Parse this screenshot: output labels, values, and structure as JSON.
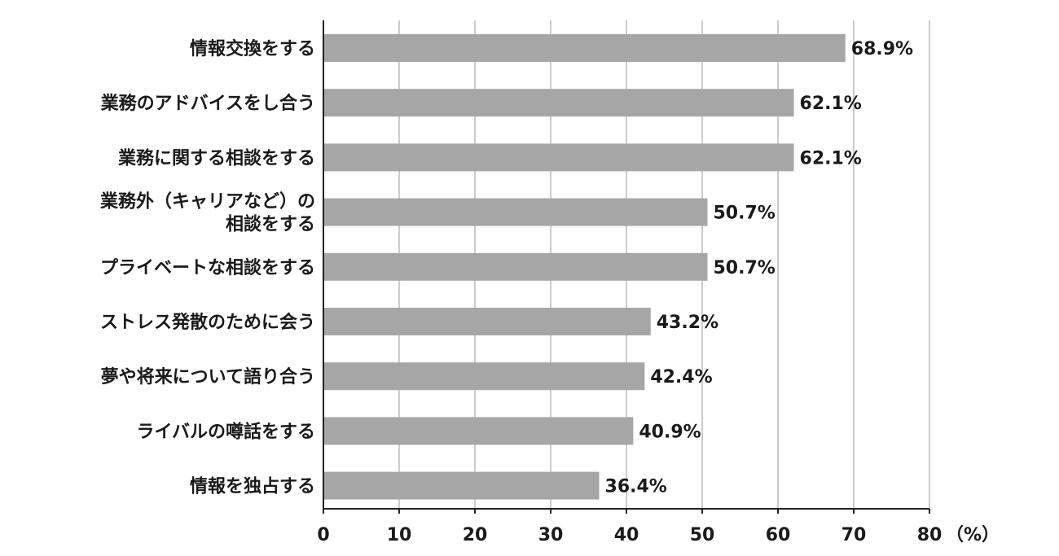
{
  "chart_data": {
    "type": "bar",
    "orientation": "horizontal",
    "categories": [
      [
        "情報交換をする"
      ],
      [
        "業務のアドバイスをし合う"
      ],
      [
        "業務に関する相談をする"
      ],
      [
        "業務外（キャリアなど）の",
        "相談をする"
      ],
      [
        "プライベートな相談をする"
      ],
      [
        "ストレス発散のために会う"
      ],
      [
        "夢や将来について語り合う"
      ],
      [
        "ライバルの噂話をする"
      ],
      [
        "情報を独占する"
      ]
    ],
    "values": [
      68.9,
      62.1,
      62.1,
      50.7,
      50.7,
      43.2,
      42.4,
      40.9,
      36.4
    ],
    "value_labels": [
      "68.9%",
      "62.1%",
      "62.1%",
      "50.7%",
      "50.7%",
      "43.2%",
      "42.4%",
      "40.9%",
      "36.4%"
    ],
    "xlim": [
      0,
      80
    ],
    "xticks": [
      0,
      10,
      20,
      30,
      40,
      50,
      60,
      70,
      80
    ],
    "xtick_labels": [
      "0",
      "10",
      "20",
      "30",
      "40",
      "50",
      "60",
      "70",
      "80"
    ],
    "unit_label": "（%）",
    "grid": true,
    "bar_color": "#a6a6a6",
    "grid_color": "#9a9a9a",
    "axis_color": "#222222"
  }
}
